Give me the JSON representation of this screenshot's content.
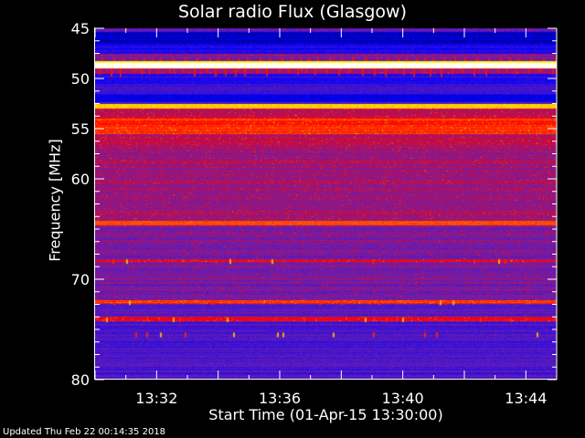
{
  "chart_data": {
    "type": "heatmap",
    "title": "Solar radio Flux (Glasgow)",
    "xlabel": "Start Time (01-Apr-15 13:30:00)",
    "ylabel": "Frequency [MHz]",
    "x_range": [
      "13:30",
      "13:45"
    ],
    "x_ticks": [
      "13:32",
      "13:36",
      "13:40",
      "13:44"
    ],
    "ylim": [
      45,
      80
    ],
    "y_inverted": true,
    "y_ticks": [
      45,
      50,
      55,
      60,
      70,
      80
    ],
    "y_tick_labels": [
      "45",
      "50",
      "55",
      "60",
      "70",
      "80"
    ],
    "colormap": [
      "#000000",
      "#0000ff",
      "#6a1fb0",
      "#ff0000",
      "#ff8c00",
      "#ffff00",
      "#ffffff"
    ],
    "bands_mhz_intensity": [
      [
        45.0,
        45.4,
        0.32
      ],
      [
        45.4,
        46.6,
        0.12
      ],
      [
        46.6,
        47.6,
        0.2
      ],
      [
        47.6,
        48.3,
        0.35
      ],
      [
        48.3,
        48.5,
        0.85
      ],
      [
        48.5,
        49.0,
        1.0
      ],
      [
        49.0,
        49.6,
        0.4
      ],
      [
        49.6,
        50.6,
        0.22
      ],
      [
        50.6,
        51.6,
        0.26
      ],
      [
        51.6,
        52.4,
        0.16
      ],
      [
        52.4,
        52.6,
        0.3
      ],
      [
        52.6,
        53.0,
        0.78
      ],
      [
        53.0,
        54.0,
        0.42
      ],
      [
        54.0,
        55.6,
        0.55
      ],
      [
        55.6,
        57.0,
        0.42
      ],
      [
        57.0,
        64.2,
        0.38
      ],
      [
        64.2,
        64.7,
        0.62
      ],
      [
        64.7,
        68.0,
        0.35
      ],
      [
        68.0,
        68.3,
        0.48
      ],
      [
        68.3,
        72.1,
        0.33
      ],
      [
        72.1,
        72.5,
        0.55
      ],
      [
        72.5,
        73.8,
        0.3
      ],
      [
        73.8,
        74.2,
        0.5
      ],
      [
        74.2,
        80.0,
        0.28
      ]
    ]
  },
  "footer": {
    "updated": "Updated Thu Feb 22 00:14:35 2018"
  }
}
